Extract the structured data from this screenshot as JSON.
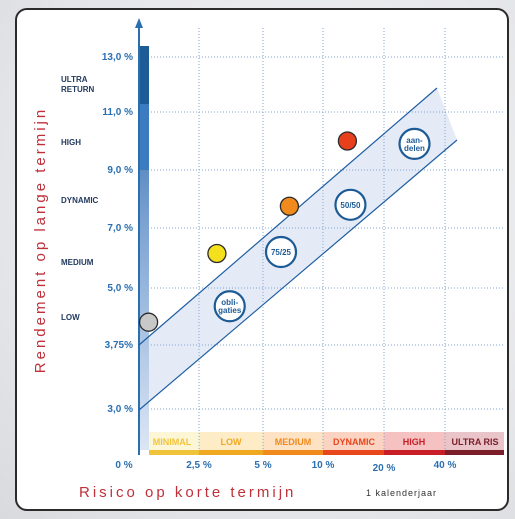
{
  "chart_data": {
    "type": "scatter",
    "xlabel": "Risico op korte termijn",
    "xlabel_suffix": "1 kalenderjaar",
    "ylabel": "Rendement op lange termijn",
    "x_ticks": [
      "0 %",
      "2,5 %",
      "5 %",
      "10 %",
      "20 %",
      "40 %"
    ],
    "y_ticks": [
      "3,0 %",
      "3,75%",
      "5,0 %",
      "7,0 %",
      "9,0 %",
      "11,0 %",
      "13,0 %"
    ],
    "y_categories": [
      "LOW",
      "MEDIUM",
      "DYNAMIC",
      "HIGH",
      "ULTRA RETURN"
    ],
    "risk_bands": [
      {
        "label": "MINIMAL",
        "color": "#f0c43a",
        "bg": "#fdf6d6"
      },
      {
        "label": "LOW",
        "color": "#f0a820",
        "bg": "#fdecc6"
      },
      {
        "label": "MEDIUM",
        "color": "#f08a1c",
        "bg": "#fde2c4"
      },
      {
        "label": "DYNAMIC",
        "color": "#e8461c",
        "bg": "#fbd3c2"
      },
      {
        "label": "HIGH",
        "color": "#c81e28",
        "bg": "#f5c1c1"
      },
      {
        "label": "ULTRA RIS",
        "color": "#7a1e2a",
        "bg": "#e9c4c8"
      }
    ],
    "points": [
      {
        "x": 0.4,
        "y": 4.25,
        "color": "#c8c8c8"
      },
      {
        "x": 3.2,
        "y": 6.15,
        "color": "#f4e01c"
      },
      {
        "x": 7.2,
        "y": 7.75,
        "color": "#f08a1c"
      },
      {
        "x": 14.0,
        "y": 10.0,
        "color": "#e8401c"
      }
    ],
    "portfolios": [
      {
        "label": "obli-\ngaties",
        "x": 3.7,
        "y": 4.6
      },
      {
        "label": "75/25",
        "x": 6.5,
        "y": 6.2
      },
      {
        "label": "50/50",
        "x": 14.5,
        "y": 7.8
      },
      {
        "label": "aan-\ndelen",
        "x": 30.0,
        "y": 9.9
      }
    ],
    "colors": {
      "axis": "#2a6fb0",
      "grid": "#7fa6d1",
      "corridor": "#dfe8f5",
      "bar": "#2a6fb0"
    }
  }
}
